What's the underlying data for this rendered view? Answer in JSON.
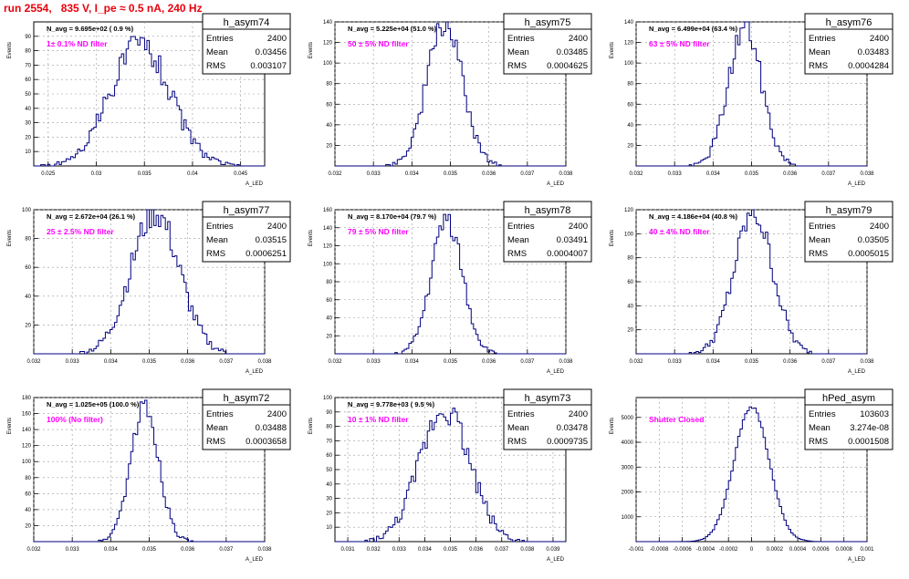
{
  "page_title": "run 2554,   835 V, I_pe ≈ 0.5 nA, 240 Hz",
  "colors": {
    "title": "#e8000b",
    "annotation": "#ff00ff",
    "histogram": "#00007f",
    "axis": "#000000",
    "grid": "#999999"
  },
  "stats_labels": {
    "entries": "Entries",
    "mean": "Mean",
    "rms": "RMS"
  },
  "chart_data": [
    {
      "type": "histogram",
      "name": "h_asym74",
      "navg": "N_avg = 9.695e+02 ( 0.9 %)",
      "annotation": "1± 0.1% ND filter",
      "stats": {
        "entries": "2400",
        "mean": "0.03456",
        "rms": "0.003107"
      },
      "ylabel": "Events",
      "xlabel": "A_LED",
      "xlim": [
        0.0235,
        0.0475
      ],
      "ylim": [
        0,
        100
      ],
      "xticks": [
        0.025,
        0.03,
        0.035,
        0.04,
        0.045
      ],
      "xtick_labels": [
        "0.025",
        "0.03",
        "0.035",
        "0.04",
        "0.045"
      ],
      "yticks": [
        10,
        20,
        30,
        40,
        50,
        60,
        70,
        80,
        90
      ],
      "ytick_labels": [
        "10",
        "20",
        "30",
        "40",
        "50",
        "60",
        "70",
        "80",
        "90"
      ],
      "gaussian": {
        "mean": 0.03456,
        "sigma": 0.003107,
        "peak": 85,
        "nbins": 100,
        "seed": 74
      }
    },
    {
      "type": "histogram",
      "name": "h_asym75",
      "navg": "N_avg = 5.225e+04 (51.0 %)",
      "annotation": "50 ± 5% ND filter",
      "stats": {
        "entries": "2400",
        "mean": "0.03485",
        "rms": "0.0004625"
      },
      "ylabel": "Events",
      "xlabel": "A_LED",
      "xlim": [
        0.032,
        0.038
      ],
      "ylim": [
        0,
        140
      ],
      "xticks": [
        0.032,
        0.033,
        0.034,
        0.035,
        0.036,
        0.037,
        0.038
      ],
      "xtick_labels": [
        "0.032",
        "0.033",
        "0.034",
        "0.035",
        "0.036",
        "0.037",
        "0.038"
      ],
      "yticks": [
        20,
        40,
        60,
        80,
        100,
        120,
        140
      ],
      "ytick_labels": [
        "20",
        "40",
        "60",
        "80",
        "100",
        "120",
        "140"
      ],
      "gaussian": {
        "mean": 0.03485,
        "sigma": 0.0004625,
        "peak": 138,
        "nbins": 100,
        "seed": 75
      }
    },
    {
      "type": "histogram",
      "name": "h_asym76",
      "navg": "N_avg = 6.499e+04 (63.4 %)",
      "annotation": "63 ± 5% ND filter",
      "stats": {
        "entries": "2400",
        "mean": "0.03483",
        "rms": "0.0004284"
      },
      "ylabel": "Events",
      "xlabel": "A_LED",
      "xlim": [
        0.032,
        0.038
      ],
      "ylim": [
        0,
        140
      ],
      "xticks": [
        0.032,
        0.033,
        0.034,
        0.035,
        0.036,
        0.037,
        0.038
      ],
      "xtick_labels": [
        "0.032",
        "0.033",
        "0.034",
        "0.035",
        "0.036",
        "0.037",
        "0.038"
      ],
      "yticks": [
        20,
        40,
        60,
        80,
        100,
        120,
        140
      ],
      "ytick_labels": [
        "20",
        "40",
        "60",
        "80",
        "100",
        "120",
        "140"
      ],
      "gaussian": {
        "mean": 0.03483,
        "sigma": 0.0004284,
        "peak": 135,
        "nbins": 100,
        "seed": 76
      }
    },
    {
      "type": "histogram",
      "name": "h_asym77",
      "navg": "N_avg = 2.672e+04 (26.1 %)",
      "annotation": "25 ± 2.5% ND filter",
      "stats": {
        "entries": "2400",
        "mean": "0.03515",
        "rms": "0.0006251"
      },
      "ylabel": "Events",
      "xlabel": "A_LED",
      "xlim": [
        0.032,
        0.038
      ],
      "ylim": [
        0,
        100
      ],
      "xticks": [
        0.032,
        0.033,
        0.034,
        0.035,
        0.036,
        0.037,
        0.038
      ],
      "xtick_labels": [
        "0.032",
        "0.033",
        "0.034",
        "0.035",
        "0.036",
        "0.037",
        "0.038"
      ],
      "yticks": [
        20,
        40,
        60,
        80,
        100
      ],
      "ytick_labels": [
        "20",
        "40",
        "60",
        "80",
        "100"
      ],
      "gaussian": {
        "mean": 0.03515,
        "sigma": 0.0006251,
        "peak": 98,
        "nbins": 100,
        "seed": 77
      }
    },
    {
      "type": "histogram",
      "name": "h_asym78",
      "navg": "N_avg = 8.170e+04 (79.7 %)",
      "annotation": "79 ± 5% ND filter",
      "stats": {
        "entries": "2400",
        "mean": "0.03491",
        "rms": "0.0004007"
      },
      "ylabel": "Events",
      "xlabel": "A_LED",
      "xlim": [
        0.032,
        0.038
      ],
      "ylim": [
        0,
        160
      ],
      "xticks": [
        0.032,
        0.033,
        0.034,
        0.035,
        0.036,
        0.037,
        0.038
      ],
      "xtick_labels": [
        "0.032",
        "0.033",
        "0.034",
        "0.035",
        "0.036",
        "0.037",
        "0.038"
      ],
      "yticks": [
        20,
        40,
        60,
        80,
        100,
        120,
        140,
        160
      ],
      "ytick_labels": [
        "20",
        "40",
        "60",
        "80",
        "100",
        "120",
        "140",
        "160"
      ],
      "gaussian": {
        "mean": 0.03491,
        "sigma": 0.0004007,
        "peak": 150,
        "nbins": 100,
        "seed": 78
      }
    },
    {
      "type": "histogram",
      "name": "h_asym79",
      "navg": "N_avg = 4.186e+04 (40.8 %)",
      "annotation": "40 ± 4% ND filter",
      "stats": {
        "entries": "2400",
        "mean": "0.03505",
        "rms": "0.0005015"
      },
      "ylabel": "Events",
      "xlabel": "A_LED",
      "xlim": [
        0.032,
        0.038
      ],
      "ylim": [
        0,
        120
      ],
      "xticks": [
        0.032,
        0.033,
        0.034,
        0.035,
        0.036,
        0.037,
        0.038
      ],
      "xtick_labels": [
        "0.032",
        "0.033",
        "0.034",
        "0.035",
        "0.036",
        "0.037",
        "0.038"
      ],
      "yticks": [
        20,
        40,
        60,
        80,
        100,
        120
      ],
      "ytick_labels": [
        "20",
        "40",
        "60",
        "80",
        "100",
        "120"
      ],
      "gaussian": {
        "mean": 0.03505,
        "sigma": 0.0005015,
        "peak": 117,
        "nbins": 100,
        "seed": 79
      }
    },
    {
      "type": "histogram",
      "name": "h_asym72",
      "navg": "N_avg = 1.025e+05 (100.0 %)",
      "annotation": "100% (No filter)",
      "stats": {
        "entries": "2400",
        "mean": "0.03488",
        "rms": "0.0003658"
      },
      "ylabel": "Events",
      "xlabel": "A_LED",
      "xlim": [
        0.032,
        0.038
      ],
      "ylim": [
        0,
        180
      ],
      "xticks": [
        0.032,
        0.033,
        0.034,
        0.035,
        0.036,
        0.037,
        0.038
      ],
      "xtick_labels": [
        "0.032",
        "0.033",
        "0.034",
        "0.035",
        "0.036",
        "0.037",
        "0.038"
      ],
      "yticks": [
        20,
        40,
        60,
        80,
        100,
        120,
        140,
        160,
        180
      ],
      "ytick_labels": [
        "20",
        "40",
        "60",
        "80",
        "100",
        "120",
        "140",
        "160",
        "180"
      ],
      "gaussian": {
        "mean": 0.03488,
        "sigma": 0.0003658,
        "peak": 168,
        "nbins": 100,
        "seed": 72
      }
    },
    {
      "type": "histogram",
      "name": "h_asym73",
      "navg": "N_avg = 9.778e+03 ( 9.5 %)",
      "annotation": "10 ± 1% ND filter",
      "stats": {
        "entries": "2400",
        "mean": "0.03478",
        "rms": "0.0009735"
      },
      "ylabel": "Events",
      "xlabel": "A_LED",
      "xlim": [
        0.0305,
        0.0395
      ],
      "ylim": [
        0,
        100
      ],
      "xticks": [
        0.031,
        0.032,
        0.033,
        0.034,
        0.035,
        0.036,
        0.037,
        0.038,
        0.039
      ],
      "xtick_labels": [
        "0.031",
        "0.032",
        "0.033",
        "0.034",
        "0.035",
        "0.036",
        "0.037",
        "0.038",
        "0.039"
      ],
      "yticks": [
        10,
        20,
        30,
        40,
        50,
        60,
        70,
        80,
        90,
        100
      ],
      "ytick_labels": [
        "10",
        "20",
        "30",
        "40",
        "50",
        "60",
        "70",
        "80",
        "90",
        "100"
      ],
      "gaussian": {
        "mean": 0.03478,
        "sigma": 0.0009735,
        "peak": 93,
        "nbins": 100,
        "seed": 73
      }
    },
    {
      "type": "histogram",
      "name": "hPed_asym",
      "navg": "",
      "annotation": "Shutter Closed",
      "stats": {
        "entries": "103603",
        "mean": "3.274e-08",
        "rms": "0.0001508"
      },
      "ylabel": "Events",
      "xlabel": "A_LED",
      "xlim": [
        -0.001,
        0.001
      ],
      "ylim": [
        0,
        5800
      ],
      "xticks": [
        -0.001,
        -0.0008,
        -0.0006,
        -0.0004,
        -0.0002,
        0,
        0.0002,
        0.0004,
        0.0006,
        0.0008,
        0.001
      ],
      "xtick_labels": [
        "-0.001",
        "-0.0008",
        "-0.0006",
        "-0.0004",
        "-0.0002",
        "0",
        "0.0002",
        "0.0004",
        "0.0006",
        "0.0008",
        "0.001"
      ],
      "yticks": [
        1000,
        2000,
        3000,
        4000,
        5000
      ],
      "ytick_labels": [
        "1000",
        "2000",
        "3000",
        "4000",
        "5000"
      ],
      "gaussian": {
        "mean": 0.0,
        "sigma": 0.0001508,
        "peak": 5450,
        "nbins": 100,
        "seed": 99
      }
    }
  ]
}
